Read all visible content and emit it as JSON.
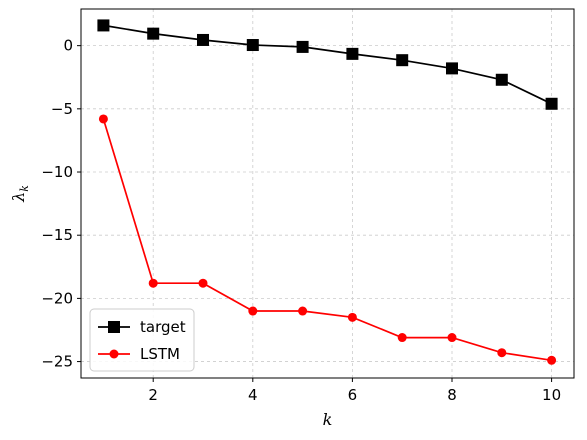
{
  "chart_data": {
    "type": "line",
    "xlabel": "k",
    "ylabel": "λ_k",
    "ylabel_main": "λ",
    "ylabel_sub": "k",
    "xlim": [
      0.55,
      10.45
    ],
    "ylim": [
      -26.3,
      2.9
    ],
    "x_ticks": [
      2,
      4,
      6,
      8,
      10
    ],
    "y_ticks": [
      0,
      -5,
      -10,
      -15,
      -20,
      -25
    ],
    "x_tick_labels": [
      "2",
      "4",
      "6",
      "8",
      "10"
    ],
    "y_tick_labels": [
      "0",
      "−5",
      "−10",
      "−15",
      "−20",
      "−25"
    ],
    "grid": true,
    "legend_position": "lower-left",
    "x": [
      1,
      2,
      3,
      4,
      5,
      6,
      7,
      8,
      9,
      10
    ],
    "series": [
      {
        "name": "target",
        "color": "#000000",
        "marker": "square",
        "values": [
          1.6,
          0.95,
          0.45,
          0.05,
          -0.1,
          -0.65,
          -1.15,
          -1.8,
          -2.7,
          -4.6
        ]
      },
      {
        "name": "LSTM",
        "color": "#ff0000",
        "marker": "circle",
        "values": [
          -5.8,
          -18.8,
          -18.8,
          -21.0,
          -21.0,
          -21.5,
          -23.1,
          -23.1,
          -24.3,
          -24.9
        ]
      }
    ]
  }
}
